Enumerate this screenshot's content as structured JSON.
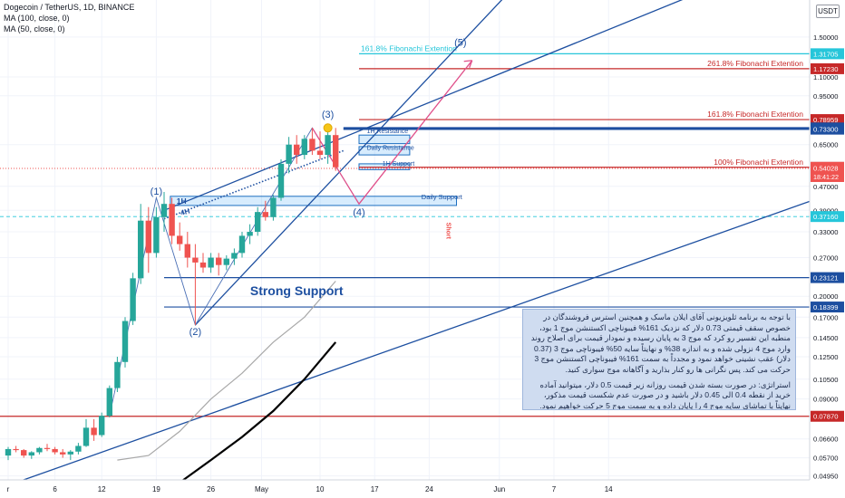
{
  "header": {
    "title": "Dogecoin / TetherUS, 1D, BINANCE",
    "ma100_label": "MA (100, close, 0)",
    "ma50_label": "MA (50, close, 0)"
  },
  "quote_badge": "USDT",
  "colors": {
    "up": "#26a69a",
    "down": "#ef5350",
    "trend": "#1d4fa0",
    "fib_red": "#c62828",
    "fib_cyan": "#26c6da",
    "projection": "#e0508a",
    "note_bg": "#cfdcf0"
  },
  "note": {
    "paragraph1": "با توجه به برنامه ثلویزیونی آقای ایلان ماسک و همچنین استرس فروشندگان در خصوص سقف قیمتی 0.73 دلار که نزدیک 161% فیبوناچی اکستنشن موج 1 بود، منطبه این تفسیر رو کرد که موج 3 به پایان رسیده و نمودار قیمت برای اصلاح روند وارد موج 4 نزولی شده و به اندازه 38% و نهایتاً سایه 50% فیبوناچی موج 3 (0.37 دلار) عقب نشینی خواهد نمود و مجدداً به سمت 161% فیبوناچی اکستنشن موج 3 حرکت می کند. پس نگرانی ها رو کنار بذارید و آگاهانه موج سواری کنید.",
    "paragraph2": "استراتژی: در صورت بسته شدن قیمت روزانه زیر قیمت 0.5 دلار، میتوانید آماده خرید از نقطه 0.4 الی 0.45 دلار باشید و در صورت عدم شکست قیمت مذکور، نهایتاً با تماشای سایه موج 4 را پایان داده و به سمت موج 5 حرکت خواهیم نمود."
  },
  "chart_data": {
    "type": "candlestick",
    "symbol": "Dogecoin / TetherUS",
    "interval": "1D",
    "exchange": "BINANCE",
    "scale": "log",
    "ylim": [
      0.048,
      2.0
    ],
    "y_ticks": [
      1.5,
      1.1,
      0.95,
      0.65,
      0.47,
      0.39,
      0.33,
      0.27,
      0.2,
      0.17,
      0.145,
      0.125,
      0.105,
      0.09,
      0.066,
      0.057,
      0.0495
    ],
    "y_tick_labels": [
      "1.50000",
      "1.10000",
      "0.95000",
      "0.65000",
      "0.47000",
      "0.39000",
      "0.33000",
      "0.27000",
      "0.20000",
      "0.17000",
      "0.14500",
      "0.12500",
      "0.10500",
      "0.09000",
      "0.06600",
      "0.05700",
      "0.04950"
    ],
    "x_ticks": [
      {
        "label": "r",
        "day": 0
      },
      {
        "label": "6",
        "day": 6
      },
      {
        "label": "12",
        "day": 12
      },
      {
        "label": "19",
        "day": 19
      },
      {
        "label": "26",
        "day": 26
      },
      {
        "label": "May",
        "day": 32.5
      },
      {
        "label": "10",
        "day": 40
      },
      {
        "label": "17",
        "day": 47
      },
      {
        "label": "24",
        "day": 54
      },
      {
        "label": "Jun",
        "day": 63
      },
      {
        "label": "7",
        "day": 70
      },
      {
        "label": "14",
        "day": 77
      }
    ],
    "candles": [
      {
        "o": 0.058,
        "h": 0.062,
        "l": 0.056,
        "c": 0.061
      },
      {
        "o": 0.061,
        "h": 0.0625,
        "l": 0.0595,
        "c": 0.0605
      },
      {
        "o": 0.0605,
        "h": 0.061,
        "l": 0.057,
        "c": 0.058
      },
      {
        "o": 0.058,
        "h": 0.06,
        "l": 0.0565,
        "c": 0.0595
      },
      {
        "o": 0.0595,
        "h": 0.062,
        "l": 0.0585,
        "c": 0.0615
      },
      {
        "o": 0.0615,
        "h": 0.0635,
        "l": 0.06,
        "c": 0.061
      },
      {
        "o": 0.061,
        "h": 0.062,
        "l": 0.0585,
        "c": 0.0595
      },
      {
        "o": 0.0595,
        "h": 0.061,
        "l": 0.057,
        "c": 0.0585
      },
      {
        "o": 0.0585,
        "h": 0.0605,
        "l": 0.056,
        "c": 0.0598
      },
      {
        "o": 0.0598,
        "h": 0.064,
        "l": 0.0585,
        "c": 0.0625
      },
      {
        "o": 0.0625,
        "h": 0.077,
        "l": 0.062,
        "c": 0.072
      },
      {
        "o": 0.072,
        "h": 0.077,
        "l": 0.065,
        "c": 0.068
      },
      {
        "o": 0.068,
        "h": 0.081,
        "l": 0.067,
        "c": 0.079
      },
      {
        "o": 0.079,
        "h": 0.1,
        "l": 0.078,
        "c": 0.098
      },
      {
        "o": 0.098,
        "h": 0.125,
        "l": 0.095,
        "c": 0.12
      },
      {
        "o": 0.12,
        "h": 0.17,
        "l": 0.115,
        "c": 0.165
      },
      {
        "o": 0.165,
        "h": 0.24,
        "l": 0.16,
        "c": 0.23
      },
      {
        "o": 0.23,
        "h": 0.41,
        "l": 0.22,
        "c": 0.36
      },
      {
        "o": 0.36,
        "h": 0.4,
        "l": 0.24,
        "c": 0.28
      },
      {
        "o": 0.28,
        "h": 0.4,
        "l": 0.27,
        "c": 0.37
      },
      {
        "o": 0.37,
        "h": 0.45,
        "l": 0.33,
        "c": 0.41
      },
      {
        "o": 0.41,
        "h": 0.43,
        "l": 0.3,
        "c": 0.32
      },
      {
        "o": 0.32,
        "h": 0.355,
        "l": 0.285,
        "c": 0.3
      },
      {
        "o": 0.3,
        "h": 0.33,
        "l": 0.25,
        "c": 0.27
      },
      {
        "o": 0.27,
        "h": 0.3,
        "l": 0.16,
        "c": 0.26
      },
      {
        "o": 0.26,
        "h": 0.28,
        "l": 0.24,
        "c": 0.25
      },
      {
        "o": 0.25,
        "h": 0.28,
        "l": 0.24,
        "c": 0.27
      },
      {
        "o": 0.27,
        "h": 0.28,
        "l": 0.235,
        "c": 0.255
      },
      {
        "o": 0.255,
        "h": 0.275,
        "l": 0.245,
        "c": 0.268
      },
      {
        "o": 0.268,
        "h": 0.29,
        "l": 0.255,
        "c": 0.28
      },
      {
        "o": 0.28,
        "h": 0.33,
        "l": 0.27,
        "c": 0.32
      },
      {
        "o": 0.32,
        "h": 0.35,
        "l": 0.3,
        "c": 0.33
      },
      {
        "o": 0.33,
        "h": 0.4,
        "l": 0.32,
        "c": 0.385
      },
      {
        "o": 0.385,
        "h": 0.42,
        "l": 0.36,
        "c": 0.37
      },
      {
        "o": 0.37,
        "h": 0.44,
        "l": 0.36,
        "c": 0.43
      },
      {
        "o": 0.43,
        "h": 0.58,
        "l": 0.42,
        "c": 0.56
      },
      {
        "o": 0.56,
        "h": 0.69,
        "l": 0.52,
        "c": 0.65
      },
      {
        "o": 0.65,
        "h": 0.7,
        "l": 0.56,
        "c": 0.6
      },
      {
        "o": 0.6,
        "h": 0.7,
        "l": 0.58,
        "c": 0.68
      },
      {
        "o": 0.68,
        "h": 0.74,
        "l": 0.6,
        "c": 0.62
      },
      {
        "o": 0.62,
        "h": 0.72,
        "l": 0.58,
        "c": 0.6
      },
      {
        "o": 0.6,
        "h": 0.72,
        "l": 0.56,
        "c": 0.7
      },
      {
        "o": 0.7,
        "h": 0.74,
        "l": 0.53,
        "c": 0.545
      }
    ],
    "ma50": [
      {
        "day": 14,
        "v": 0.056
      },
      {
        "day": 18,
        "v": 0.058
      },
      {
        "day": 22,
        "v": 0.07
      },
      {
        "day": 26,
        "v": 0.09
      },
      {
        "day": 30,
        "v": 0.11
      },
      {
        "day": 34,
        "v": 0.14
      },
      {
        "day": 38,
        "v": 0.17
      },
      {
        "day": 42,
        "v": 0.225
      }
    ],
    "ma100": [
      {
        "day": 22,
        "v": 0.047
      },
      {
        "day": 26,
        "v": 0.056
      },
      {
        "day": 30,
        "v": 0.067
      },
      {
        "day": 34,
        "v": 0.082
      },
      {
        "day": 38,
        "v": 0.105
      },
      {
        "day": 42,
        "v": 0.14
      }
    ],
    "horizontal_levels": [
      {
        "name": "161.8% Fibonachi Extention",
        "value": 1.31705,
        "label": "1.31705",
        "color": "#26c6da",
        "kind": "fib"
      },
      {
        "name": "261.8% Fibonachi Extention",
        "value": 1.1723,
        "label": "1.17230",
        "color": "#c62828",
        "kind": "fib"
      },
      {
        "name": "161.8% Fibonachi Extention",
        "value": 0.78959,
        "label": "0.78959",
        "color": "#c62828",
        "kind": "fib"
      },
      {
        "name": "",
        "value": 0.73995,
        "label": "0.73995",
        "color": "#1d4fa0",
        "kind": "level"
      },
      {
        "name": "",
        "value": 0.733,
        "label": "0.73300",
        "color": "#1d4fa0",
        "kind": "level"
      },
      {
        "name": "100% Fibonachi Extention",
        "value": 0.54491,
        "label": "0.54491",
        "color": "#c62828",
        "kind": "fib"
      },
      {
        "name": "",
        "value": 0.3716,
        "label": "0.37160",
        "color": "#26c6da",
        "kind": "dashed"
      },
      {
        "name": "",
        "value": 0.23121,
        "label": "0.23121",
        "color": "#1d4fa0",
        "kind": "level"
      },
      {
        "name": "",
        "value": 0.18399,
        "label": "0.18399",
        "color": "#1d4fa0",
        "kind": "level"
      },
      {
        "name": "",
        "value": 0.0787,
        "label": "0.07870",
        "color": "#c62828",
        "kind": "level"
      }
    ],
    "price_badge": {
      "value": 0.54028,
      "label": "0.54028",
      "countdown": "18:41:22"
    },
    "annotations": {
      "strong_support": "Strong Support",
      "daily_support": "Daily Support",
      "short": "Short",
      "tag_1h": "1H",
      "tag_4h": "4H",
      "tag_resistance": "1H Resistance",
      "tag_daily_resistance": "Daily Resistance",
      "tag_1h_support": "1H Support"
    },
    "waves": [
      {
        "label": "(1)",
        "day": 19,
        "value": 0.44
      },
      {
        "label": "(2)",
        "day": 24,
        "value": 0.148
      },
      {
        "label": "(3)",
        "day": 41,
        "value": 0.8
      },
      {
        "label": "(4)",
        "day": 45,
        "value": 0.375
      },
      {
        "label": "(5)",
        "day": 58,
        "value": 1.4
      }
    ],
    "wave_path": [
      {
        "day": 13,
        "v": 0.079
      },
      {
        "day": 19,
        "v": 0.43
      },
      {
        "day": 24,
        "v": 0.16
      },
      {
        "day": 39,
        "v": 0.74
      },
      {
        "day": 45,
        "v": 0.41
      }
    ],
    "projection_path": [
      {
        "day": 39,
        "v": 0.74
      },
      {
        "day": 45,
        "v": 0.41
      },
      {
        "day": 59.5,
        "v": 1.25
      }
    ]
  }
}
